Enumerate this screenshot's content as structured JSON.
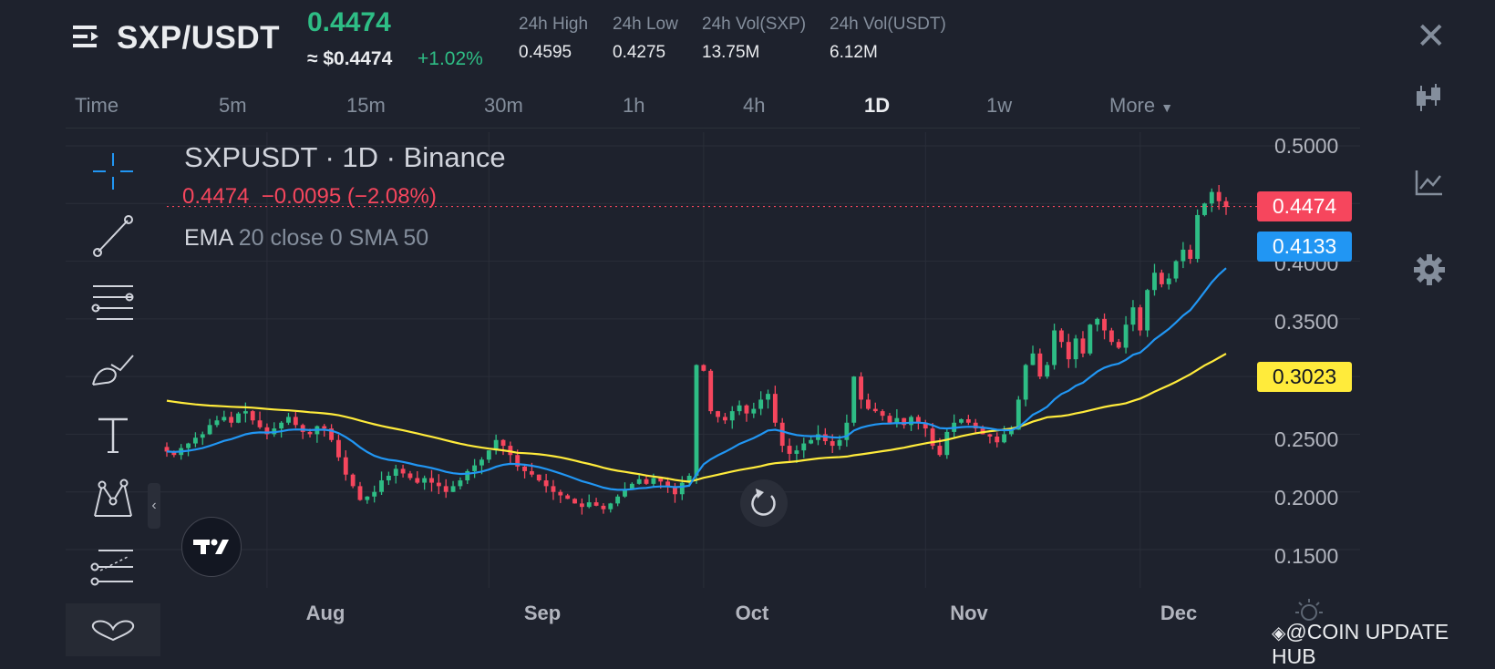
{
  "header": {
    "pair": "SXP/USDT",
    "last_price": "0.4474",
    "approx_usd": "≈ $0.4474",
    "change_pct": "+1.02%",
    "stats": [
      {
        "label": "24h High",
        "value": "0.4595"
      },
      {
        "label": "24h Low",
        "value": "0.4275"
      },
      {
        "label": "24h Vol(SXP)",
        "value": "13.75M"
      },
      {
        "label": "24h Vol(USDT)",
        "value": "6.12M"
      }
    ]
  },
  "timeframes": [
    "Time",
    "5m",
    "15m",
    "30m",
    "1h",
    "4h",
    "1D",
    "1w",
    "More"
  ],
  "active_timeframe": "1D",
  "legend": {
    "symbol": "SXPUSDT · 1D · Binance",
    "ohlc_close": "0.4474",
    "ohlc_change": "−0.0095 (−2.08%)",
    "ind_label": "EMA",
    "ind_params": "20 close 0 SMA 50"
  },
  "price_tags": {
    "last": "0.4474",
    "ema": "0.4133",
    "sma": "0.3023"
  },
  "watermark": "@COIN UPDATE HUB",
  "colors": {
    "up": "#2ebd85",
    "down": "#f6465d",
    "ema": "#2196f3",
    "sma": "#ffeb3b",
    "bg": "#1e222d"
  },
  "chart_data": {
    "type": "candlestick",
    "symbol": "SXPUSDT",
    "interval": "1D",
    "y_ticks": [
      0.5,
      0.45,
      0.4,
      0.35,
      0.3,
      0.25,
      0.2,
      0.15
    ],
    "y_tick_labels": [
      "0.5000",
      "0.4000",
      "0.3500",
      "0.2500",
      "0.2000",
      "0.1500"
    ],
    "x_ticks": [
      {
        "label": "Aug",
        "index": 14
      },
      {
        "label": "Sep",
        "index": 45
      },
      {
        "label": "Oct",
        "index": 75
      },
      {
        "label": "Nov",
        "index": 106
      },
      {
        "label": "Dec",
        "index": 136
      }
    ],
    "ylim": [
      0.12,
      0.52
    ],
    "closes": [
      0.235,
      0.232,
      0.238,
      0.242,
      0.247,
      0.25,
      0.258,
      0.262,
      0.265,
      0.26,
      0.268,
      0.27,
      0.262,
      0.256,
      0.25,
      0.255,
      0.26,
      0.265,
      0.258,
      0.252,
      0.25,
      0.257,
      0.255,
      0.245,
      0.23,
      0.215,
      0.205,
      0.193,
      0.196,
      0.2,
      0.21,
      0.214,
      0.22,
      0.216,
      0.212,
      0.208,
      0.212,
      0.208,
      0.205,
      0.2,
      0.205,
      0.21,
      0.218,
      0.223,
      0.228,
      0.236,
      0.245,
      0.24,
      0.232,
      0.222,
      0.218,
      0.215,
      0.21,
      0.205,
      0.2,
      0.197,
      0.194,
      0.19,
      0.187,
      0.191,
      0.188,
      0.185,
      0.19,
      0.196,
      0.202,
      0.207,
      0.211,
      0.207,
      0.212,
      0.209,
      0.205,
      0.198,
      0.208,
      0.214,
      0.31,
      0.305,
      0.27,
      0.265,
      0.262,
      0.27,
      0.275,
      0.268,
      0.272,
      0.28,
      0.285,
      0.26,
      0.24,
      0.233,
      0.236,
      0.242,
      0.245,
      0.25,
      0.244,
      0.24,
      0.245,
      0.26,
      0.3,
      0.28,
      0.272,
      0.27,
      0.266,
      0.26,
      0.264,
      0.258,
      0.265,
      0.26,
      0.255,
      0.24,
      0.232,
      0.252,
      0.26,
      0.263,
      0.26,
      0.255,
      0.25,
      0.248,
      0.243,
      0.25,
      0.254,
      0.28,
      0.31,
      0.32,
      0.3,
      0.31,
      0.34,
      0.33,
      0.315,
      0.333,
      0.32,
      0.345,
      0.35,
      0.34,
      0.33,
      0.325,
      0.345,
      0.36,
      0.34,
      0.375,
      0.39,
      0.38,
      0.385,
      0.4,
      0.41,
      0.402,
      0.44,
      0.45,
      0.46,
      0.452,
      0.447
    ],
    "ema20_last": 0.4133,
    "sma50_last": 0.3023,
    "last_close": 0.4474
  }
}
